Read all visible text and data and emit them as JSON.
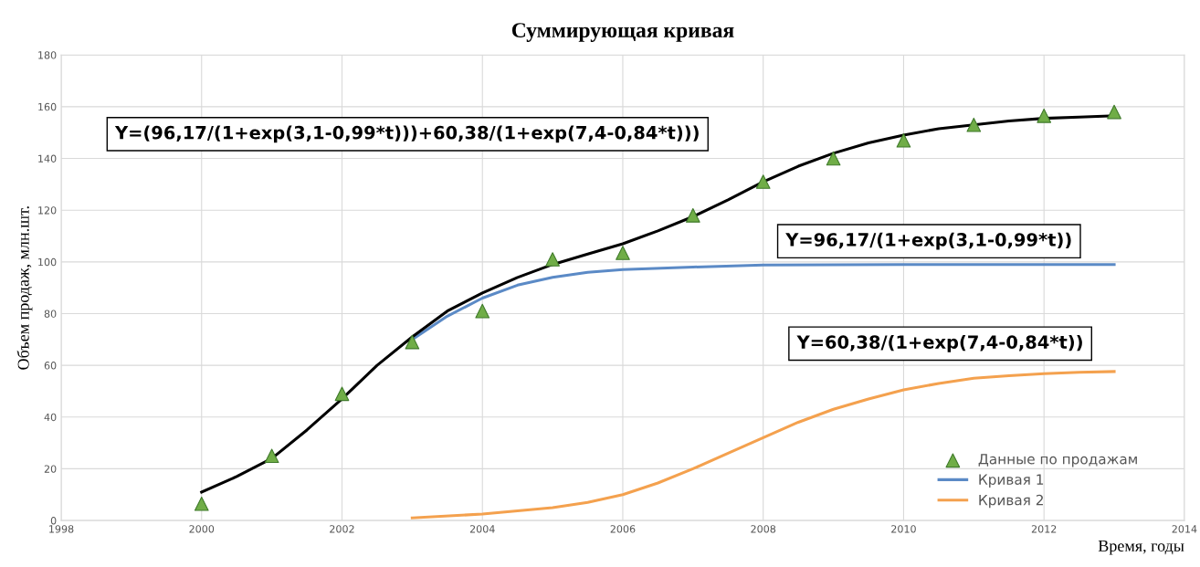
{
  "chart_data": {
    "type": "line",
    "title": "Суммирующая кривая",
    "xlabel": "Время, годы",
    "ylabel": "Объем продаж, млн.шт.",
    "xlim": [
      1998,
      2014
    ],
    "xticks": [
      1998,
      2000,
      2002,
      2004,
      2006,
      2008,
      2010,
      2012,
      2014
    ],
    "ylim": [
      0,
      180
    ],
    "yticks": [
      0,
      20,
      40,
      60,
      80,
      100,
      120,
      140,
      160,
      180
    ],
    "grid": true,
    "legend": "bottom right",
    "series": [
      {
        "name": "Данные по продажам",
        "type": "scatter",
        "marker": "triangle",
        "color": "#70ad47",
        "x": [
          2000,
          2001,
          2002,
          2003,
          2004,
          2005,
          2006,
          2007,
          2008,
          2009,
          2010,
          2011,
          2012,
          2013
        ],
        "values": [
          6.5,
          25,
          49,
          69,
          81,
          101,
          103.5,
          118,
          131,
          140,
          147,
          153,
          156.5,
          158
        ]
      },
      {
        "name": "Кривая 1",
        "type": "line",
        "color": "#5b8ac6",
        "x": [
          2003,
          2003.5,
          2004,
          2004.5,
          2005,
          2005.5,
          2006,
          2007,
          2008,
          2010,
          2013
        ],
        "values": [
          70,
          79,
          86,
          91,
          94,
          96,
          97,
          98,
          98.8,
          99,
          99
        ]
      },
      {
        "name": "Кривая 2",
        "type": "line",
        "color": "#f4a14e",
        "x": [
          2003,
          2004,
          2005,
          2005.5,
          2006,
          2006.5,
          2007,
          2007.5,
          2008,
          2008.5,
          2009,
          2009.5,
          2010,
          2010.5,
          2011,
          2011.5,
          2012,
          2012.5,
          2013
        ],
        "values": [
          1,
          2.5,
          5,
          7,
          10,
          14.5,
          20,
          26,
          32,
          38,
          43,
          47,
          50.5,
          53,
          55,
          56,
          56.8,
          57.3,
          57.6
        ]
      },
      {
        "type": "line",
        "color": "#000000",
        "x": [
          2000,
          2000.5,
          2001,
          2001.5,
          2002,
          2002.5,
          2003,
          2003.5,
          2004,
          2004.5,
          2005,
          2005.5,
          2006,
          2006.5,
          2007,
          2007.5,
          2008,
          2008.5,
          2009,
          2009.5,
          2010,
          2010.5,
          2011,
          2011.5,
          2012,
          2012.5,
          2013
        ],
        "values": [
          11,
          17,
          24,
          35,
          47,
          60,
          71,
          81,
          88,
          94,
          99,
          103,
          107,
          112,
          117.5,
          124,
          131,
          137,
          142,
          146,
          149,
          151.5,
          153,
          154.5,
          155.5,
          156,
          156.5
        ]
      }
    ],
    "annotations": [
      "Y=(96,17/(1+exp(3,1-0,99*t)))+60,38/(1+exp(7,4-0,84*t)))",
      "Y=96,17/(1+exp(3,1-0,99*t))",
      "Y=60,38/(1+exp(7,4-0,84*t))"
    ]
  }
}
